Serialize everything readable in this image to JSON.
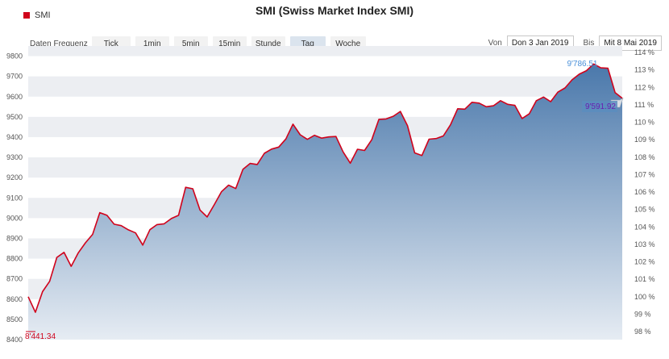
{
  "legend": {
    "label": "SMI",
    "color": "#d0021b"
  },
  "title": "SMI (Swiss Market Index SMI)",
  "toolbar": {
    "freq_label": "Daten Frequenz",
    "buttons": [
      "Tick",
      "1min",
      "5min",
      "15min",
      "Stunde",
      "Tag",
      "Woche"
    ],
    "active": "Tag"
  },
  "range": {
    "from_label": "Von",
    "from_value": "Don 3 Jan 2019",
    "to_label": "Bis",
    "to_value": "Mit 8 Mai 2019"
  },
  "annotations": {
    "max_label": "9'786.51",
    "last_label": "9'591.92",
    "min_label": "8'441.34"
  },
  "colors": {
    "line": "#d0021b",
    "fill_top": "#4a78ab",
    "fill_bottom": "#e6ecf3",
    "band": "#eceef2",
    "max_label": "#4a90d9",
    "last_label": "#6a1fb0",
    "last_bg": "#5b8dbe",
    "min_label": "#d0021b"
  },
  "chart_data": {
    "type": "area",
    "series": [
      {
        "name": "SMI",
        "values": [
          8612,
          8535,
          8637,
          8688,
          8806,
          8831,
          8762,
          8829,
          8878,
          8920,
          9027,
          9014,
          8970,
          8963,
          8942,
          8927,
          8867,
          8943,
          8968,
          8972,
          8998,
          9014,
          9152,
          9145,
          9040,
          9006,
          9067,
          9130,
          9163,
          9146,
          9241,
          9270,
          9265,
          9320,
          9341,
          9351,
          9391,
          9464,
          9412,
          9389,
          9409,
          9395,
          9401,
          9403,
          9327,
          9271,
          9340,
          9334,
          9387,
          9488,
          9490,
          9503,
          9527,
          9456,
          9322,
          9309,
          9390,
          9393,
          9406,
          9461,
          9540,
          9538,
          9572,
          9568,
          9550,
          9555,
          9580,
          9562,
          9557,
          9492,
          9515,
          9580,
          9598,
          9575,
          9622,
          9643,
          9683,
          9711,
          9728,
          9761,
          9742,
          9740,
          9620,
          9592
        ]
      }
    ],
    "x_range": [
      "Don 3 Jan 2019",
      "Mit 8 Mai 2019"
    ],
    "ylim": [
      8400,
      9850
    ],
    "yticks": [
      8400,
      8500,
      8600,
      8700,
      8800,
      8900,
      9000,
      9100,
      9200,
      9300,
      9400,
      9500,
      9600,
      9700,
      9800
    ],
    "y2ticks": [
      "98 %",
      "99 %",
      "100 %",
      "101 %",
      "102 %",
      "103 %",
      "104 %",
      "105 %",
      "106 %",
      "107 %",
      "108 %",
      "109 %",
      "110 %",
      "111 %",
      "112 %",
      "113 %",
      "114 %"
    ],
    "y2_base": 8612,
    "grid": "banded"
  }
}
